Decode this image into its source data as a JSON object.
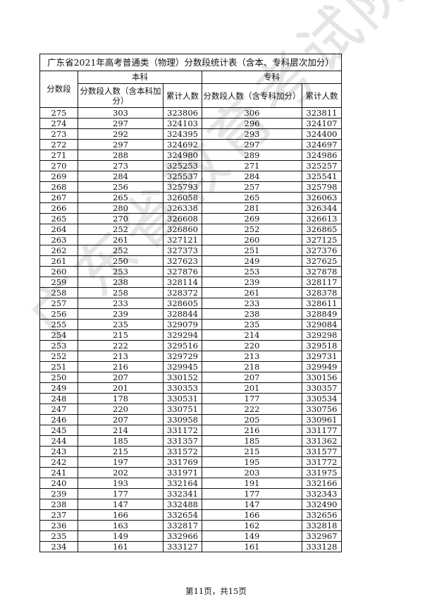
{
  "table": {
    "title": "广东省2021年高考普通类（物理）分数段统计表（含本、专科层次加分）",
    "col_score": "分数段",
    "group_benke": "本科",
    "group_zhuanke": "专科",
    "benke_count": "分数段人数（含本科加分）",
    "benke_cum": "累计人数",
    "zhuanke_count": "分数段人数（含专科加分）",
    "zhuanke_cum": "累计人数",
    "rows": [
      [
        "275",
        "303",
        "323806",
        "306",
        "323811"
      ],
      [
        "274",
        "297",
        "324103",
        "296",
        "324107"
      ],
      [
        "273",
        "292",
        "324395",
        "293",
        "324400"
      ],
      [
        "272",
        "297",
        "324692",
        "297",
        "324697"
      ],
      [
        "271",
        "288",
        "324980",
        "289",
        "324986"
      ],
      [
        "270",
        "273",
        "325253",
        "271",
        "325257"
      ],
      [
        "269",
        "284",
        "325537",
        "284",
        "325541"
      ],
      [
        "268",
        "256",
        "325793",
        "257",
        "325798"
      ],
      [
        "267",
        "265",
        "326058",
        "265",
        "326063"
      ],
      [
        "266",
        "280",
        "326338",
        "281",
        "326344"
      ],
      [
        "265",
        "270",
        "326608",
        "269",
        "326613"
      ],
      [
        "264",
        "252",
        "326860",
        "252",
        "326865"
      ],
      [
        "263",
        "261",
        "327121",
        "260",
        "327125"
      ],
      [
        "262",
        "252",
        "327373",
        "251",
        "327376"
      ],
      [
        "261",
        "250",
        "327623",
        "249",
        "327625"
      ],
      [
        "260",
        "253",
        "327876",
        "253",
        "327878"
      ],
      [
        "259",
        "238",
        "328114",
        "239",
        "328117"
      ],
      [
        "258",
        "258",
        "328372",
        "261",
        "328378"
      ],
      [
        "257",
        "233",
        "328605",
        "233",
        "328611"
      ],
      [
        "256",
        "239",
        "328844",
        "238",
        "328849"
      ],
      [
        "255",
        "235",
        "329079",
        "235",
        "329084"
      ],
      [
        "254",
        "215",
        "329294",
        "214",
        "329298"
      ],
      [
        "253",
        "222",
        "329516",
        "220",
        "329518"
      ],
      [
        "252",
        "213",
        "329729",
        "213",
        "329731"
      ],
      [
        "251",
        "216",
        "329945",
        "218",
        "329949"
      ],
      [
        "250",
        "207",
        "330152",
        "207",
        "330156"
      ],
      [
        "249",
        "201",
        "330353",
        "201",
        "330357"
      ],
      [
        "248",
        "178",
        "330531",
        "177",
        "330534"
      ],
      [
        "247",
        "220",
        "330751",
        "222",
        "330756"
      ],
      [
        "246",
        "207",
        "330958",
        "205",
        "330961"
      ],
      [
        "245",
        "214",
        "331172",
        "216",
        "331177"
      ],
      [
        "244",
        "185",
        "331357",
        "185",
        "331362"
      ],
      [
        "243",
        "215",
        "331572",
        "215",
        "331577"
      ],
      [
        "242",
        "197",
        "331769",
        "195",
        "331772"
      ],
      [
        "241",
        "202",
        "331971",
        "203",
        "331975"
      ],
      [
        "240",
        "193",
        "332164",
        "191",
        "332166"
      ],
      [
        "239",
        "177",
        "332341",
        "177",
        "332343"
      ],
      [
        "238",
        "147",
        "332488",
        "147",
        "332490"
      ],
      [
        "237",
        "166",
        "332654",
        "166",
        "332656"
      ],
      [
        "236",
        "163",
        "332817",
        "162",
        "332818"
      ],
      [
        "235",
        "149",
        "332966",
        "149",
        "332967"
      ],
      [
        "234",
        "161",
        "333127",
        "161",
        "333128"
      ]
    ]
  },
  "watermark": "广东省教育考试院",
  "footer": "第11页，共15页"
}
